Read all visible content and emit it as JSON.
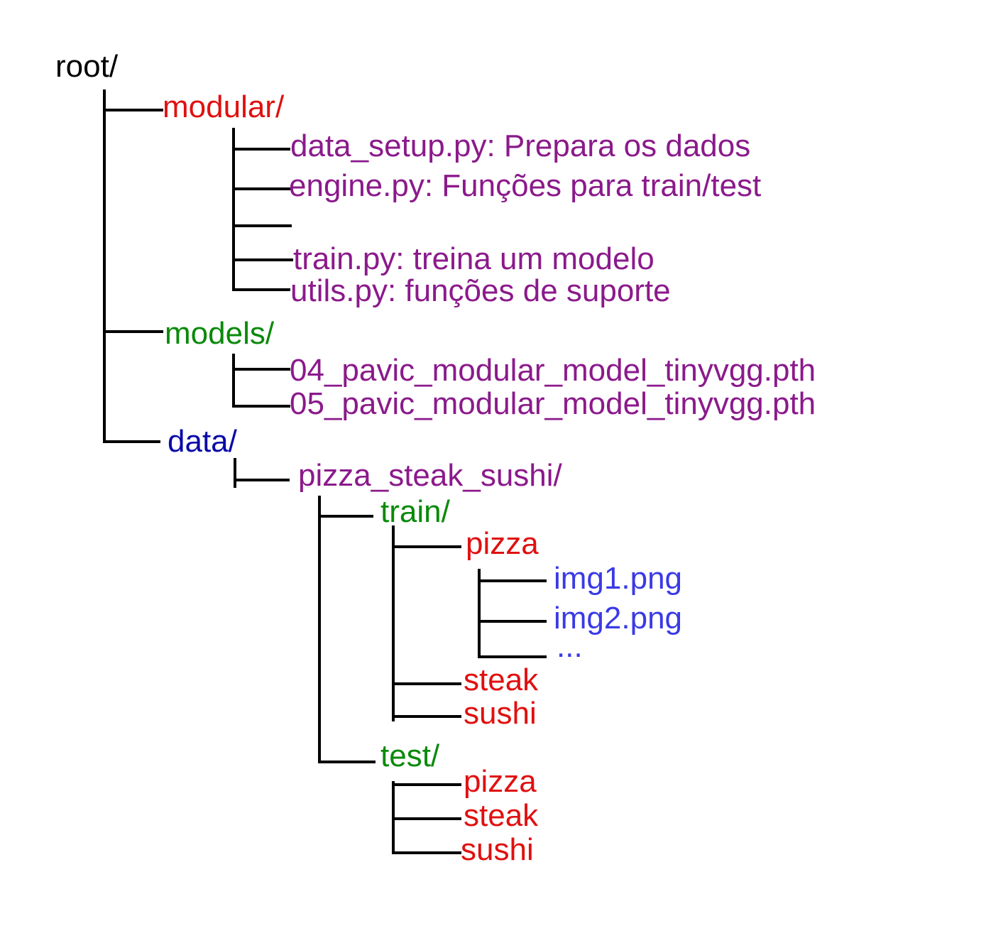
{
  "colors": {
    "line": "#000000",
    "root": "#000000",
    "red": "#e01010",
    "purple": "#8b1a8b",
    "green": "#0a8a0a",
    "navy": "#0a0aa8",
    "blue": "#3a3ae6"
  },
  "tree": {
    "root": "root/",
    "modular": {
      "label": "modular/",
      "files": [
        "data_setup.py: Prepara os dados",
        "engine.py: Funções para train/test",
        "",
        "train.py: treina um modelo",
        "utils.py: funções de suporte"
      ]
    },
    "models": {
      "label": "models/",
      "files": [
        "04_pavic_modular_model_tinyvgg.pth",
        "05_pavic_modular_model_tinyvgg.pth"
      ]
    },
    "data": {
      "label": "data/",
      "dataset": "pizza_steak_sushi/",
      "train": {
        "label": "train/",
        "classes": [
          "pizza",
          "steak",
          "sushi"
        ],
        "pizza_images": [
          "img1.png",
          "img2.png",
          "..."
        ]
      },
      "test": {
        "label": "test/",
        "classes": [
          "pizza",
          "steak",
          "sushi"
        ]
      }
    }
  }
}
